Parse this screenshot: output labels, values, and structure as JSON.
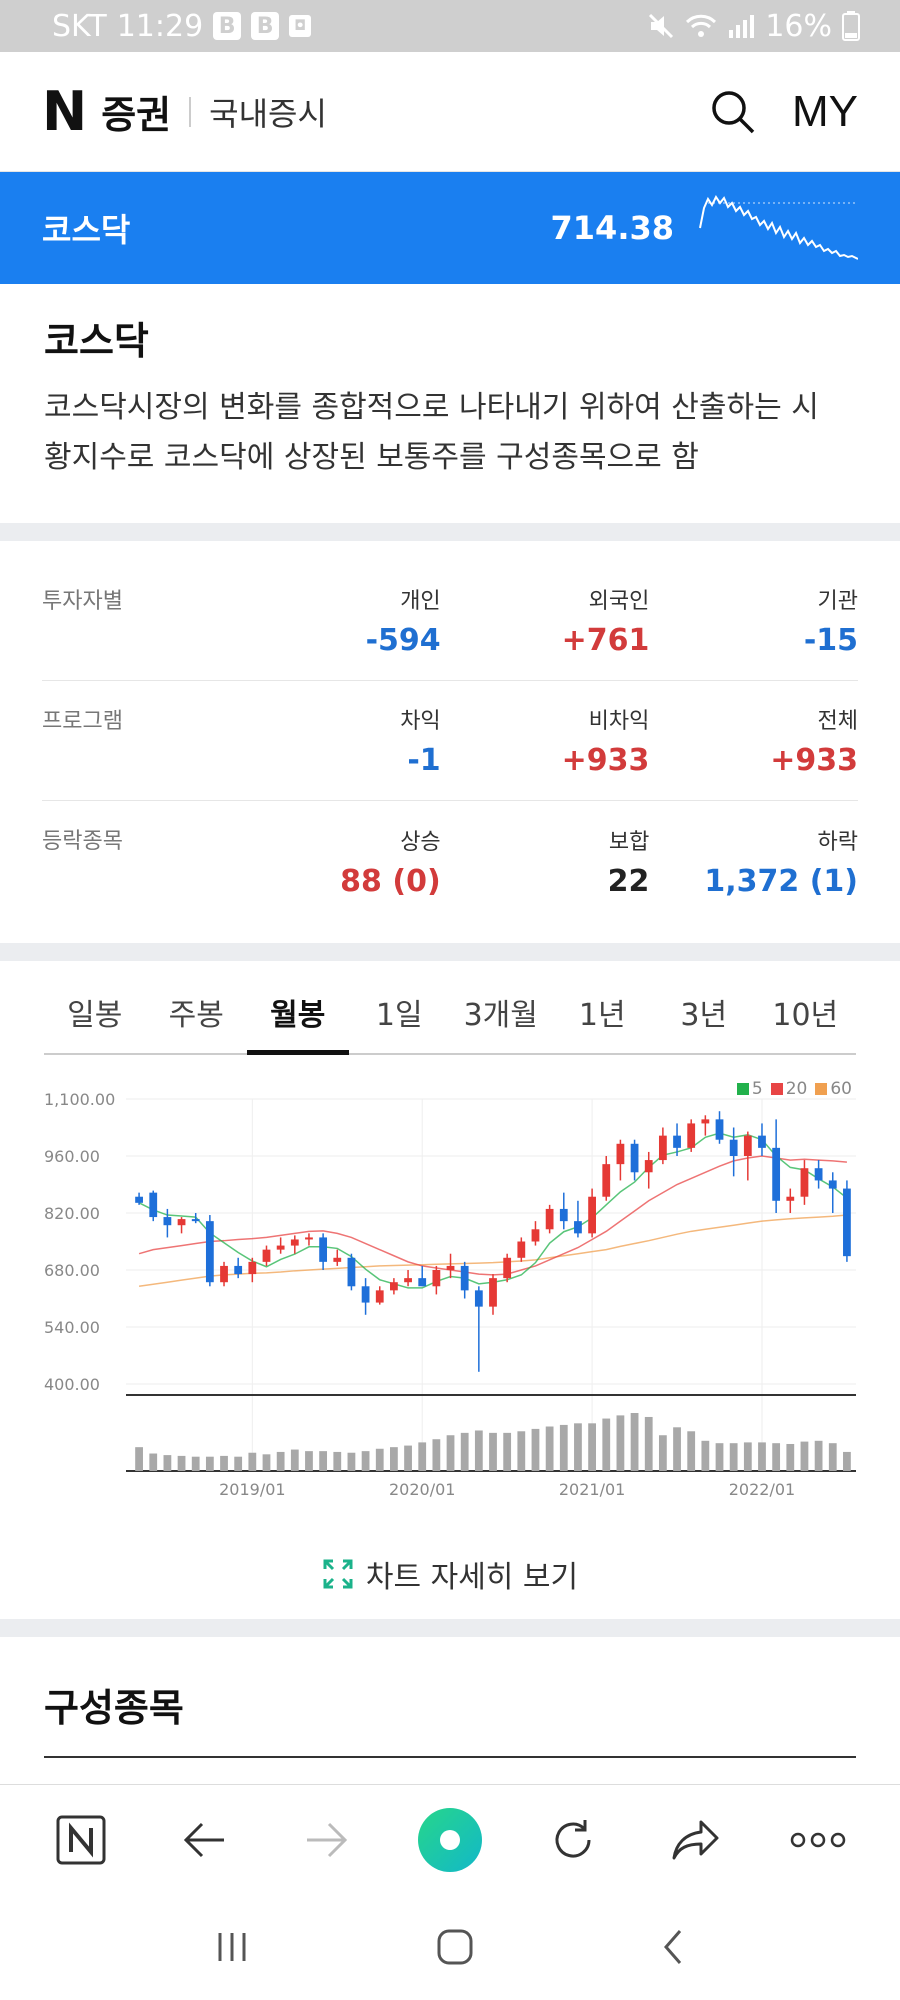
{
  "status_bar": {
    "carrier": "SKT",
    "time": "11:29",
    "badges": [
      "B",
      "B",
      "◘"
    ],
    "battery": "16%"
  },
  "header": {
    "logo_letter": "N",
    "logo_text": "증권",
    "section": "국내증시",
    "my_label": "MY"
  },
  "index_bar": {
    "name": "코스닥",
    "value": "714.38"
  },
  "description": {
    "title": "코스닥",
    "line1": "코스닥시장의 변화를 종합적으로 나타내기 위하여 산출하는 시",
    "line2": "황지수로 코스닥에 상장된 보통주를 구성종목으로 함"
  },
  "stats": [
    {
      "label": "투자자별",
      "cols": [
        {
          "key": "개인",
          "value": "-594",
          "color": "blue"
        },
        {
          "key": "외국인",
          "value": "+761",
          "color": "red"
        },
        {
          "key": "기관",
          "value": "-15",
          "color": "blue"
        }
      ]
    },
    {
      "label": "프로그램",
      "cols": [
        {
          "key": "차익",
          "value": "-1",
          "color": "blue"
        },
        {
          "key": "비차익",
          "value": "+933",
          "color": "red"
        },
        {
          "key": "전체",
          "value": "+933",
          "color": "red"
        }
      ]
    },
    {
      "label": "등락종목",
      "cols": [
        {
          "key": "상승",
          "value": "88 (0)",
          "color": "red"
        },
        {
          "key": "보합",
          "value": "22",
          "color": "black"
        },
        {
          "key": "하락",
          "value": "1,372 (1)",
          "color": "blue"
        }
      ]
    }
  ],
  "tabs": [
    "일봉",
    "주봉",
    "월봉",
    "1일",
    "3개월",
    "1년",
    "3년",
    "10년"
  ],
  "active_tab": 2,
  "chart_data": {
    "type": "candlestick",
    "legend": [
      {
        "name": "5",
        "color": "#22b14c"
      },
      {
        "name": "20",
        "color": "#e84545"
      },
      {
        "name": "60",
        "color": "#f0a050"
      }
    ],
    "y_ticks": [
      "1,100.00",
      "960.00",
      "820.00",
      "680.00",
      "540.00",
      "400.00"
    ],
    "ylim": [
      400,
      1100
    ],
    "x_ticks": [
      {
        "label": "2019/01",
        "index": 8
      },
      {
        "label": "2020/01",
        "index": 20
      },
      {
        "label": "2021/01",
        "index": 32
      },
      {
        "label": "2022/01",
        "index": 44
      }
    ],
    "candles": [
      [
        860,
        870,
        840,
        845
      ],
      [
        870,
        875,
        800,
        810
      ],
      [
        810,
        830,
        760,
        790
      ],
      [
        790,
        810,
        770,
        805
      ],
      [
        805,
        820,
        795,
        800
      ],
      [
        800,
        815,
        640,
        650
      ],
      [
        650,
        700,
        640,
        690
      ],
      [
        690,
        710,
        660,
        670
      ],
      [
        670,
        710,
        650,
        700
      ],
      [
        700,
        740,
        690,
        730
      ],
      [
        730,
        760,
        720,
        740
      ],
      [
        740,
        765,
        720,
        755
      ],
      [
        755,
        770,
        740,
        760
      ],
      [
        760,
        770,
        680,
        700
      ],
      [
        700,
        730,
        690,
        710
      ],
      [
        710,
        720,
        630,
        640
      ],
      [
        640,
        660,
        570,
        600
      ],
      [
        600,
        640,
        595,
        630
      ],
      [
        630,
        660,
        620,
        650
      ],
      [
        650,
        680,
        640,
        660
      ],
      [
        660,
        690,
        640,
        640
      ],
      [
        640,
        690,
        620,
        680
      ],
      [
        680,
        720,
        660,
        690
      ],
      [
        690,
        700,
        610,
        630
      ],
      [
        630,
        640,
        430,
        590
      ],
      [
        590,
        670,
        570,
        660
      ],
      [
        660,
        720,
        650,
        710
      ],
      [
        710,
        760,
        700,
        750
      ],
      [
        750,
        800,
        740,
        780
      ],
      [
        780,
        840,
        770,
        830
      ],
      [
        830,
        870,
        780,
        800
      ],
      [
        800,
        850,
        760,
        770
      ],
      [
        770,
        880,
        760,
        860
      ],
      [
        860,
        960,
        850,
        940
      ],
      [
        940,
        1000,
        900,
        990
      ],
      [
        990,
        1000,
        900,
        920
      ],
      [
        920,
        970,
        880,
        950
      ],
      [
        950,
        1030,
        940,
        1010
      ],
      [
        1010,
        1040,
        960,
        980
      ],
      [
        980,
        1050,
        970,
        1040
      ],
      [
        1040,
        1060,
        1010,
        1050
      ],
      [
        1050,
        1070,
        990,
        1000
      ],
      [
        1000,
        1030,
        910,
        960
      ],
      [
        960,
        1020,
        900,
        1010
      ],
      [
        1010,
        1040,
        960,
        980
      ],
      [
        980,
        1050,
        820,
        850
      ],
      [
        850,
        880,
        820,
        860
      ],
      [
        860,
        950,
        840,
        930
      ],
      [
        930,
        950,
        880,
        900
      ],
      [
        900,
        920,
        820,
        880
      ],
      [
        880,
        900,
        700,
        714
      ]
    ],
    "ma20": [
      720,
      730,
      735,
      740,
      745,
      750,
      752,
      755,
      757,
      760,
      765,
      770,
      775,
      776,
      770,
      760,
      745,
      730,
      715,
      700,
      690,
      685,
      680,
      675,
      670,
      668,
      670,
      680,
      690,
      705,
      720,
      735,
      755,
      775,
      800,
      825,
      850,
      870,
      890,
      905,
      920,
      935,
      948,
      955,
      960,
      955,
      950,
      952,
      950,
      948,
      945
    ],
    "ma60": [
      640,
      645,
      650,
      655,
      660,
      665,
      668,
      670,
      672,
      673,
      675,
      678,
      680,
      682,
      684,
      686,
      688,
      690,
      691,
      692,
      693,
      694,
      695,
      696,
      697,
      698,
      700,
      702,
      705,
      710,
      715,
      720,
      725,
      730,
      738,
      745,
      752,
      760,
      768,
      775,
      780,
      785,
      790,
      795,
      800,
      803,
      806,
      808,
      810,
      812,
      815
    ],
    "volume": [
      30,
      22,
      20,
      19,
      18,
      18,
      19,
      18,
      23,
      21,
      24,
      27,
      25,
      25,
      24,
      23,
      25,
      28,
      30,
      32,
      36,
      40,
      45,
      48,
      51,
      48,
      48,
      50,
      53,
      56,
      58,
      60,
      60,
      66,
      70,
      73,
      68,
      45,
      55,
      50,
      38,
      35,
      35,
      36,
      36,
      35,
      34,
      37,
      38,
      35,
      24
    ]
  },
  "detail_button": "차트 자세히 보기",
  "constituents_title": "구성종목"
}
